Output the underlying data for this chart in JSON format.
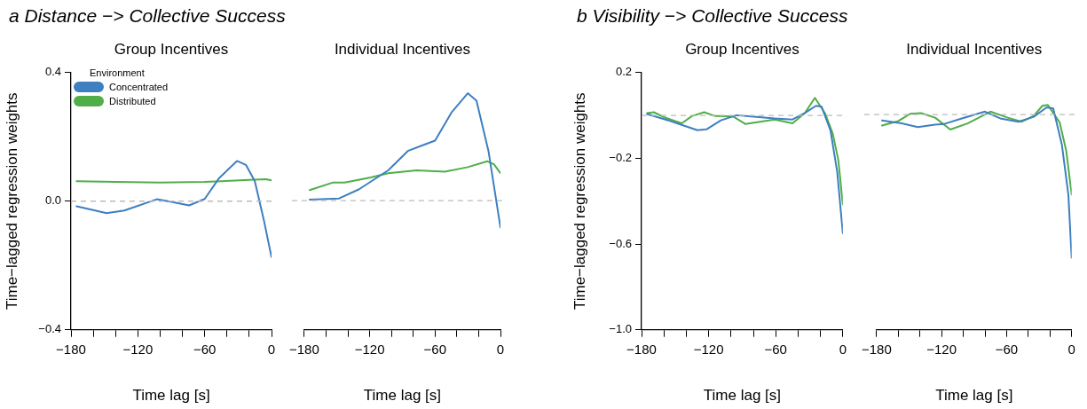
{
  "chart_data": [
    {
      "type": "line",
      "title": "a  Distance −> Collective Success",
      "subtitle": "Group Incentives",
      "xlabel": "Time lag [s]",
      "ylabel": "Time−lagged regression weights",
      "legend": "top left",
      "legend_title": "Environment",
      "xlim": [
        -180,
        0
      ],
      "xticks": [
        -180,
        {
          "value": -160,
          "label": null
        },
        {
          "value": -140,
          "label": null
        },
        -120,
        {
          "value": -100,
          "label": null
        },
        {
          "value": -80,
          "label": null
        },
        -60,
        {
          "value": -40,
          "label": null
        },
        {
          "value": -20,
          "label": null
        },
        0
      ],
      "ylim": [
        -0.4,
        0.4
      ],
      "yticks": [
        {
          "value": -0.4,
          "label": "−0.4"
        },
        {
          "value": 0,
          "label": "0.0"
        },
        {
          "value": 0.4,
          "label": "0.4"
        }
      ],
      "grid": false,
      "ref_lines": [
        {
          "axis": "y",
          "value": 0,
          "color": "#bbbbbb",
          "line_style": "dashed"
        }
      ],
      "series": [
        {
          "name": "Concentrated",
          "color": "#3d7fc1",
          "x": [
            -175,
            -148,
            -132,
            -103,
            -90,
            -74,
            -60,
            -47,
            -31,
            -23,
            -15,
            -7,
            0
          ],
          "values": [
            -0.016,
            -0.037,
            -0.029,
            0.006,
            -0.002,
            -0.013,
            0.007,
            0.072,
            0.125,
            0.113,
            0.062,
            -0.057,
            -0.174
          ]
        },
        {
          "name": "Distributed",
          "color": "#4fae48",
          "x": [
            -175,
            -140,
            -100,
            -60,
            -20,
            -5,
            0
          ],
          "values": [
            0.062,
            0.06,
            0.058,
            0.06,
            0.066,
            0.068,
            0.065
          ]
        }
      ]
    },
    {
      "type": "line",
      "subtitle": "Individual Incentives",
      "xlabel": "Time lag [s]",
      "tick_labels": "x",
      "xlim": [
        -180,
        0
      ],
      "xticks": [
        -180,
        {
          "value": -160,
          "label": null
        },
        {
          "value": -140,
          "label": null
        },
        -120,
        {
          "value": -100,
          "label": null
        },
        {
          "value": -80,
          "label": null
        },
        -60,
        {
          "value": -40,
          "label": null
        },
        {
          "value": -20,
          "label": null
        },
        0
      ],
      "ylim": [
        -0.4,
        0.4
      ],
      "grid": false,
      "ref_lines": [
        {
          "axis": "y",
          "value": 0,
          "color": "#bbbbbb",
          "line_style": "dashed"
        }
      ],
      "series": [
        {
          "color": "#3d7fc1",
          "x": [
            -175,
            -148,
            -130,
            -103,
            -85,
            -72,
            -60,
            -45,
            -30,
            -22,
            -11,
            0
          ],
          "values": [
            0.003,
            0.007,
            0.035,
            0.094,
            0.154,
            0.171,
            0.186,
            0.273,
            0.333,
            0.31,
            0.154,
            -0.083
          ]
        },
        {
          "color": "#4fae48",
          "x": [
            -175,
            -154,
            -143,
            -119,
            -103,
            -77,
            -51,
            -30,
            -12,
            -6,
            0
          ],
          "values": [
            0.033,
            0.056,
            0.056,
            0.072,
            0.085,
            0.094,
            0.09,
            0.104,
            0.122,
            0.113,
            0.085
          ]
        }
      ]
    },
    {
      "type": "line",
      "title": "b  Visibility −> Collective Success",
      "subtitle": "Group Incentives",
      "xlabel": "Time lag [s]",
      "ylabel": "Time−lagged regression weights",
      "xlim": [
        -180,
        0
      ],
      "xticks": [
        -180,
        {
          "value": -160,
          "label": null
        },
        {
          "value": -140,
          "label": null
        },
        -120,
        {
          "value": -100,
          "label": null
        },
        {
          "value": -80,
          "label": null
        },
        -60,
        {
          "value": -40,
          "label": null
        },
        {
          "value": -20,
          "label": null
        },
        0
      ],
      "ylim": [
        -1.0,
        0.2
      ],
      "yticks": [
        {
          "value": -1.0,
          "label": "−1.0"
        },
        {
          "value": -0.6,
          "label": "−0.6"
        },
        {
          "value": -0.2,
          "label": "−0.2"
        },
        {
          "value": 0.2,
          "label": "0.2"
        }
      ],
      "grid": false,
      "ref_lines": [
        {
          "axis": "y",
          "value": 0,
          "color": "#bbbbbb",
          "line_style": "dashed"
        }
      ],
      "series": [
        {
          "color": "#3d7fc1",
          "x": [
            -175,
            -156,
            -130,
            -122,
            -109,
            -95,
            -82,
            -61,
            -45,
            -34,
            -24,
            -19,
            -11,
            -5,
            0
          ],
          "values": [
            0.007,
            -0.023,
            -0.069,
            -0.065,
            -0.023,
            0.001,
            -0.005,
            -0.014,
            -0.019,
            0.011,
            0.045,
            0.041,
            -0.071,
            -0.264,
            -0.55
          ]
        },
        {
          "color": "#4fae48",
          "x": [
            -175,
            -169,
            -159,
            -144,
            -135,
            -124,
            -114,
            -98,
            -87,
            -61,
            -45,
            -34,
            -25,
            -16,
            -9,
            -4,
            0
          ],
          "values": [
            0.011,
            0.015,
            -0.01,
            -0.037,
            -0.003,
            0.015,
            -0.003,
            -0.005,
            -0.04,
            -0.019,
            -0.037,
            0.011,
            0.082,
            0.011,
            -0.085,
            -0.209,
            -0.415
          ]
        }
      ]
    },
    {
      "type": "line",
      "subtitle": "Individual Incentives",
      "xlabel": "Time lag [s]",
      "tick_labels": "x",
      "xlim": [
        -180,
        0
      ],
      "xticks": [
        -180,
        {
          "value": -160,
          "label": null
        },
        {
          "value": -140,
          "label": null
        },
        -120,
        {
          "value": -100,
          "label": null
        },
        {
          "value": -80,
          "label": null
        },
        -60,
        {
          "value": -40,
          "label": null
        },
        {
          "value": -20,
          "label": null
        },
        0
      ],
      "ylim": [
        -1.0,
        0.2
      ],
      "grid": false,
      "ref_lines": [
        {
          "axis": "y",
          "value": 0,
          "color": "#bbbbbb",
          "line_style": "dashed"
        }
      ],
      "series": [
        {
          "color": "#3d7fc1",
          "x": [
            -175,
            -157,
            -142,
            -126,
            -118,
            -102,
            -80,
            -65,
            -49,
            -35,
            -23,
            -17,
            -9,
            -3,
            0
          ],
          "values": [
            -0.027,
            -0.04,
            -0.058,
            -0.047,
            -0.044,
            -0.019,
            0.014,
            -0.019,
            -0.033,
            -0.01,
            0.034,
            0.029,
            -0.14,
            -0.374,
            -0.665
          ]
        },
        {
          "color": "#4fae48",
          "x": [
            -175,
            -160,
            -149,
            -139,
            -126,
            -112,
            -96,
            -75,
            -59,
            -46,
            -35,
            -27,
            -22,
            -11,
            -5,
            0
          ],
          "values": [
            -0.051,
            -0.03,
            0.004,
            0.007,
            -0.014,
            -0.069,
            -0.041,
            0.014,
            -0.014,
            -0.033,
            -0.006,
            0.041,
            0.045,
            -0.037,
            -0.168,
            -0.371
          ]
        }
      ]
    }
  ]
}
